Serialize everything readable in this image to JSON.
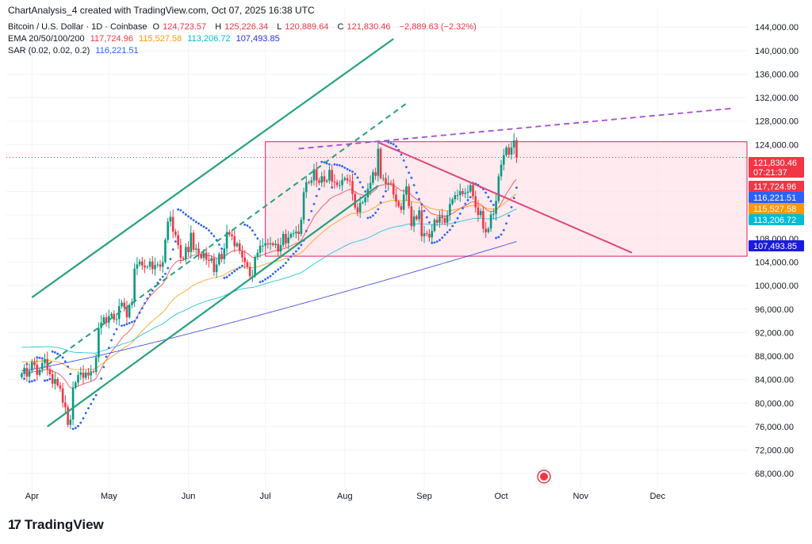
{
  "header": "ChartAnalysis_4 created with TradingView.com, Oct 07, 2025 16:38 UTC",
  "legend": {
    "symbol": "Bitcoin / U.S. Dollar · 1D · Coinbase",
    "open_label": "O",
    "open": "124,723.57",
    "high_label": "H",
    "high": "125,226.34",
    "low_label": "L",
    "low": "120,889.64",
    "close_label": "C",
    "close": "121,830.46",
    "change": "−2,889.63 (−2.32%)",
    "ema_label": "EMA 20/50/100/200",
    "ema20": "117,724.96",
    "ema50": "115,527.58",
    "ema100": "113,206.72",
    "ema200": "107,493.85",
    "sar_label": "SAR (0.02, 0.02, 0.2)",
    "sar": "116,221.51"
  },
  "brand": {
    "logo": "17",
    "name": "TradingView"
  },
  "colors": {
    "up": "#089981",
    "down": "#f23645",
    "channel": "#26a17b",
    "box_fill": "#fde3ea",
    "box_border": "#e0457b",
    "downtrend": "#e0457b",
    "purple_dash": "#a64bd6",
    "ema20": "#f23645",
    "ema50": "#ff9800",
    "ema100": "#00bcd4",
    "ema200": "#2a2ee0",
    "sar": "#2962ff"
  },
  "chart_data": {
    "type": "candlestick",
    "ylim": [
      66000,
      147000
    ],
    "y_ticks": [
      "68,000.00",
      "72,000.00",
      "76,000.00",
      "80,000.00",
      "84,000.00",
      "88,000.00",
      "92,000.00",
      "96,000.00",
      "100,000.00",
      "104,000.00",
      "108,000.00",
      "112,000.00",
      "116,000.00",
      "120,000.00",
      "124,000.00",
      "128,000.00",
      "132,000.00",
      "136,000.00",
      "140,000.00",
      "144,000.00"
    ],
    "x_ticks": [
      "Apr",
      "May",
      "Jun",
      "Jul",
      "Aug",
      "Sep",
      "Oct",
      "Nov",
      "Dec"
    ],
    "price_tags": [
      {
        "label": "121,830.46",
        "sub": "07:21:37",
        "value": 121830,
        "color": "#f23645"
      },
      {
        "label": "117,724.96",
        "value": 117725,
        "color": "#f23645"
      },
      {
        "label": "116,221.51",
        "value": 116222,
        "color": "#2962ff"
      },
      {
        "label": "115,527.58",
        "value": 115528,
        "color": "#ff9800"
      },
      {
        "label": "113,206.72",
        "value": 113207,
        "color": "#00bcd4"
      },
      {
        "label": "107,493.85",
        "value": 107494,
        "color": "#1a1ae0"
      }
    ],
    "closes": [
      85000,
      86000,
      84500,
      85500,
      87000,
      86500,
      84800,
      85700,
      86800,
      87500,
      85800,
      84900,
      83300,
      84100,
      83000,
      82500,
      80100,
      79300,
      76300,
      77200,
      82600,
      83500,
      84800,
      85200,
      84300,
      85200,
      84700,
      85400,
      85300,
      87800,
      92800,
      93700,
      94600,
      93700,
      94800,
      95200,
      94200,
      94300,
      96500,
      97100,
      96300,
      94600,
      96700,
      97200,
      102900,
      103600,
      104100,
      103400,
      103100,
      103200,
      104100,
      102800,
      103500,
      103600,
      103200,
      104000,
      107800,
      110900,
      111700,
      109200,
      108600,
      106900,
      104700,
      104500,
      106600,
      105700,
      109000,
      106100,
      106300,
      105400,
      104700,
      105600,
      104400,
      104200,
      104700,
      102300,
      103600,
      105400,
      104500,
      106300,
      109100,
      108700,
      108400,
      106700,
      107200,
      105900,
      104800,
      104000,
      103200,
      101600,
      101600,
      104900,
      105600,
      106800,
      106800,
      107200,
      107000,
      107200,
      106900,
      107100,
      105800,
      106900,
      108800,
      107200,
      108200,
      108800,
      108900,
      109200,
      108800,
      111200,
      115900,
      117600,
      117500,
      117900,
      119800,
      117900,
      117500,
      118600,
      117700,
      117900,
      119700,
      117700,
      117600,
      117100,
      117100,
      118000,
      118300,
      117900,
      117800,
      115600,
      113300,
      112500,
      114100,
      114200,
      115000,
      116500,
      117500,
      119300,
      118700,
      123300,
      118300,
      118300,
      117300,
      117500,
      117400,
      115500,
      114300,
      113500,
      112900,
      115500,
      116900,
      113500,
      110100,
      111800,
      111300,
      112800,
      108400,
      108900,
      108800,
      108200,
      109300,
      111200,
      110700,
      111800,
      111500,
      110700,
      112000,
      113900,
      114700,
      115400,
      115400,
      116100,
      115600,
      115800,
      116000,
      117100,
      115200,
      113300,
      112000,
      112700,
      109700,
      109100,
      109700,
      112100,
      112200,
      114400,
      118600,
      120600,
      122200,
      123500,
      122300,
      123500,
      124700,
      121800
    ],
    "ema20_last": 117725,
    "ema50_last": 115528,
    "ema100_last": 113207,
    "ema200_last": 107494,
    "ascending_channel": {
      "lower": [
        [
          76000,
          "2025-04-07"
        ],
        [
          117000,
          "2025-08-14"
        ]
      ],
      "upper": [
        [
          98000,
          "2025-04-01"
        ],
        [
          142000,
          "2025-08-20"
        ]
      ]
    },
    "range_box": {
      "top": 124500,
      "bottom": 105000,
      "start": "2025-07-01"
    },
    "downtrend_line": [
      [
        124400,
        "2025-08-14"
      ],
      [
        105600,
        "2025-11-21"
      ]
    ],
    "resistance_dashed": [
      [
        123300,
        "2025-07-14"
      ],
      [
        130200,
        "2025-12-31"
      ]
    ]
  }
}
